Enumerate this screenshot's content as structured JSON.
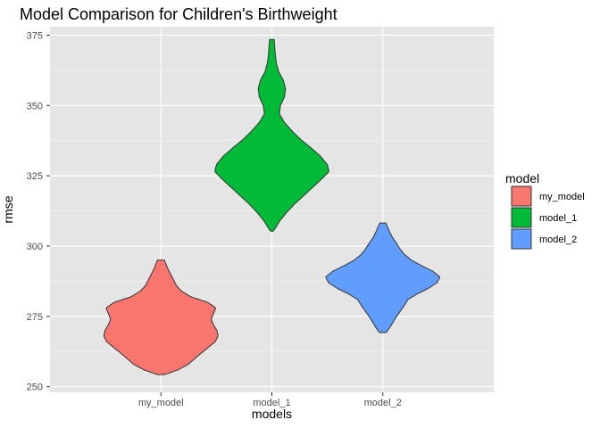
{
  "chart_data": {
    "type": "violin",
    "title": "Model Comparison for Children's Birthweight",
    "xlabel": "models",
    "ylabel": "rmse",
    "categories": [
      "my_model",
      "model_1",
      "model_2"
    ],
    "ylim": [
      248,
      378
    ],
    "yticks": [
      250,
      275,
      300,
      325,
      350,
      375
    ],
    "grid": true,
    "background": "#e5e5e5",
    "legend": {
      "title": "model",
      "placement": "right",
      "entries": [
        "my_model",
        "model_1",
        "model_2"
      ]
    },
    "series": [
      {
        "name": "my_model",
        "color": "#f8766d",
        "min": 254.3,
        "max": 295.0,
        "profile": [
          [
            254.3,
            0.06
          ],
          [
            256.0,
            0.3
          ],
          [
            258.0,
            0.48
          ],
          [
            261.0,
            0.65
          ],
          [
            264.0,
            0.83
          ],
          [
            266.0,
            0.95
          ],
          [
            268.0,
            1.0
          ],
          [
            270.0,
            0.98
          ],
          [
            272.0,
            0.92
          ],
          [
            274.0,
            0.88
          ],
          [
            276.0,
            0.92
          ],
          [
            278.0,
            0.96
          ],
          [
            280.0,
            0.82
          ],
          [
            282.0,
            0.52
          ],
          [
            284.0,
            0.36
          ],
          [
            286.0,
            0.27
          ],
          [
            288.0,
            0.22
          ],
          [
            290.0,
            0.17
          ],
          [
            292.0,
            0.12
          ],
          [
            294.0,
            0.08
          ],
          [
            295.0,
            0.06
          ]
        ]
      },
      {
        "name": "model_1",
        "color": "#00ba38",
        "min": 305.3,
        "max": 373.5,
        "profile": [
          [
            305.3,
            0.02
          ],
          [
            306.0,
            0.05
          ],
          [
            309.0,
            0.14
          ],
          [
            312.0,
            0.26
          ],
          [
            315.0,
            0.4
          ],
          [
            318.0,
            0.56
          ],
          [
            321.0,
            0.72
          ],
          [
            324.0,
            0.88
          ],
          [
            326.5,
            1.0
          ],
          [
            329.0,
            0.97
          ],
          [
            332.0,
            0.85
          ],
          [
            335.0,
            0.68
          ],
          [
            338.0,
            0.5
          ],
          [
            341.0,
            0.35
          ],
          [
            344.0,
            0.22
          ],
          [
            347.0,
            0.13
          ],
          [
            350.0,
            0.15
          ],
          [
            353.0,
            0.22
          ],
          [
            356.0,
            0.24
          ],
          [
            359.0,
            0.2
          ],
          [
            362.0,
            0.12
          ],
          [
            365.0,
            0.08
          ],
          [
            368.0,
            0.06
          ],
          [
            371.0,
            0.05
          ],
          [
            373.5,
            0.04
          ]
        ]
      },
      {
        "name": "model_2",
        "color": "#619cff",
        "min": 269.3,
        "max": 308.2,
        "profile": [
          [
            269.3,
            0.06
          ],
          [
            271.0,
            0.12
          ],
          [
            273.0,
            0.18
          ],
          [
            275.0,
            0.24
          ],
          [
            277.0,
            0.31
          ],
          [
            279.0,
            0.38
          ],
          [
            281.0,
            0.44
          ],
          [
            283.0,
            0.6
          ],
          [
            285.0,
            0.8
          ],
          [
            287.0,
            0.95
          ],
          [
            289.0,
            1.0
          ],
          [
            291.0,
            0.88
          ],
          [
            293.0,
            0.68
          ],
          [
            295.0,
            0.5
          ],
          [
            297.0,
            0.38
          ],
          [
            299.0,
            0.3
          ],
          [
            301.0,
            0.24
          ],
          [
            303.0,
            0.17
          ],
          [
            305.0,
            0.12
          ],
          [
            307.0,
            0.08
          ],
          [
            308.2,
            0.05
          ]
        ]
      }
    ]
  }
}
